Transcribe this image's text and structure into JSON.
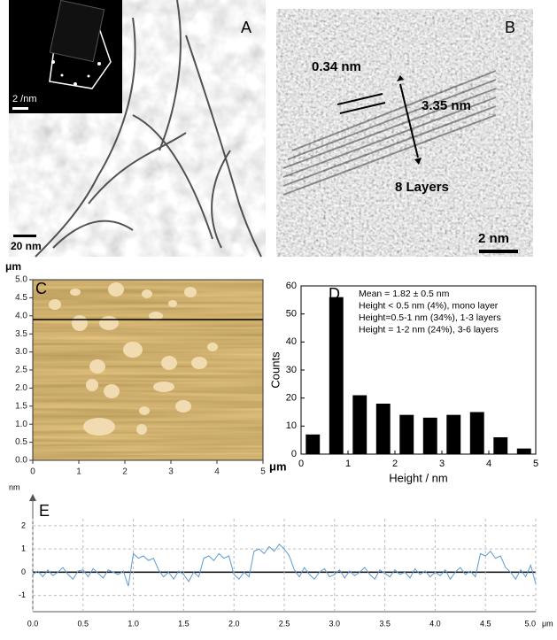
{
  "panels": {
    "A": {
      "label": "A",
      "inset_scale": "2 /nm",
      "scale": "20 nm"
    },
    "B": {
      "label": "B",
      "spacing": "0.34 nm",
      "thickness": "3.35 nm",
      "layers": "8 Layers",
      "scale": "2 nm"
    }
  },
  "chart_data": [
    {
      "type": "image",
      "label": "C",
      "xlim": [
        0,
        5
      ],
      "ylim": [
        0,
        5
      ],
      "xticks": [
        0,
        1,
        2,
        3,
        4,
        5
      ],
      "yticks": [
        {
          "value": 0,
          "label": "0.0"
        },
        0.5,
        {
          "value": 1,
          "label": "1.0"
        },
        1.5,
        {
          "value": 2,
          "label": "2.0"
        },
        2.5,
        {
          "value": 3,
          "label": "3.0"
        },
        3.5,
        {
          "value": 4,
          "label": "4.0"
        },
        4.5,
        {
          "value": 5,
          "label": "5.0"
        }
      ],
      "x_unit": "μm",
      "y_unit": "μm"
    },
    {
      "type": "histogram",
      "label": "D",
      "xlabel": "Height / nm",
      "ylabel": "Counts",
      "bins": [
        0,
        0.5,
        1,
        1.5,
        2,
        2.5,
        3,
        3.5,
        4,
        4.5,
        5
      ],
      "values": [
        7,
        56,
        21,
        18,
        14,
        13,
        14,
        15,
        6,
        2
      ],
      "color": "#000000",
      "xlim": [
        0,
        5
      ],
      "ylim": [
        0,
        60
      ],
      "xticks": [
        0,
        1,
        2,
        3,
        4,
        5
      ],
      "yticks": [
        0,
        10,
        20,
        30,
        40,
        50,
        60
      ],
      "annotations": [
        "Mean = 1.82 ± 0.5 nm",
        "Height < 0.5 nm (4%), mono layer",
        "Height=0.5-1 nm (34%), 1-3 layers",
        "Height = 1-2 nm (24%), 3-6 layers"
      ]
    },
    {
      "type": "line",
      "label": "E",
      "x_unit": "μm",
      "y_unit": "nm",
      "color": "#5b9bd5",
      "grid": true,
      "x": [
        0,
        0.05,
        0.1,
        0.15,
        0.2,
        0.25,
        0.3,
        0.35,
        0.4,
        0.45,
        0.5,
        0.55,
        0.6,
        0.65,
        0.7,
        0.75,
        0.8,
        0.85,
        0.9,
        0.95,
        1,
        1.05,
        1.1,
        1.15,
        1.2,
        1.25,
        1.3,
        1.35,
        1.4,
        1.45,
        1.5,
        1.55,
        1.6,
        1.65,
        1.7,
        1.75,
        1.8,
        1.85,
        1.9,
        1.95,
        2,
        2.05,
        2.1,
        2.15,
        2.2,
        2.25,
        2.3,
        2.35,
        2.4,
        2.45,
        2.5,
        2.55,
        2.6,
        2.65,
        2.7,
        2.75,
        2.8,
        2.85,
        2.9,
        2.95,
        3,
        3.05,
        3.1,
        3.15,
        3.2,
        3.25,
        3.3,
        3.35,
        3.4,
        3.45,
        3.5,
        3.55,
        3.6,
        3.65,
        3.7,
        3.75,
        3.8,
        3.85,
        3.9,
        3.95,
        4,
        4.05,
        4.1,
        4.15,
        4.2,
        4.25,
        4.3,
        4.35,
        4.4,
        4.45,
        4.5,
        4.55,
        4.6,
        4.65,
        4.7,
        4.75,
        4.8,
        4.85,
        4.9,
        4.95,
        5
      ],
      "values": [
        -0.1,
        0.05,
        -0.2,
        0.1,
        -0.15,
        0.0,
        0.2,
        -0.1,
        -0.3,
        0.05,
        0.1,
        -0.2,
        0.15,
        -0.05,
        -0.25,
        0.1,
        0.0,
        -0.1,
        0.05,
        -0.6,
        0.8,
        0.6,
        0.7,
        0.5,
        0.6,
        0.1,
        -0.2,
        0.0,
        -0.3,
        0.05,
        -0.1,
        -0.4,
        0.0,
        -0.2,
        0.6,
        0.7,
        0.5,
        0.8,
        0.6,
        0.7,
        -0.1,
        -0.3,
        0.0,
        -0.2,
        0.9,
        1.0,
        0.8,
        1.1,
        0.9,
        1.2,
        1.0,
        0.7,
        0.1,
        -0.2,
        0.2,
        -0.1,
        -0.3,
        0.0,
        0.15,
        -0.2,
        -0.1,
        0.1,
        -0.25,
        0.05,
        -0.15,
        0.0,
        0.2,
        -0.1,
        -0.3,
        0.1,
        -0.05,
        -0.2,
        0.1,
        -0.1,
        0.0,
        -0.25,
        0.15,
        -0.1,
        0.05,
        -0.2,
        0.0,
        -0.15,
        0.1,
        -0.3,
        0.0,
        0.2,
        -0.1,
        0.05,
        -0.2,
        0.8,
        0.7,
        0.9,
        0.6,
        0.7,
        0.2,
        0.0,
        -0.3,
        0.1,
        -0.2,
        0.3,
        -0.5
      ],
      "xlim": [
        0,
        5
      ],
      "ylim": [
        -1.7,
        2.3
      ],
      "xticks": [
        {
          "value": 0,
          "label": "0.0"
        },
        0.5,
        {
          "value": 1,
          "label": "1.0"
        },
        1.5,
        {
          "value": 2,
          "label": "2.0"
        },
        2.5,
        {
          "value": 3,
          "label": "3.0"
        },
        3.5,
        {
          "value": 4,
          "label": "4.0"
        },
        4.5,
        {
          "value": 5,
          "label": "5.0"
        }
      ],
      "yticks": [
        -1,
        0,
        1,
        2
      ]
    }
  ]
}
